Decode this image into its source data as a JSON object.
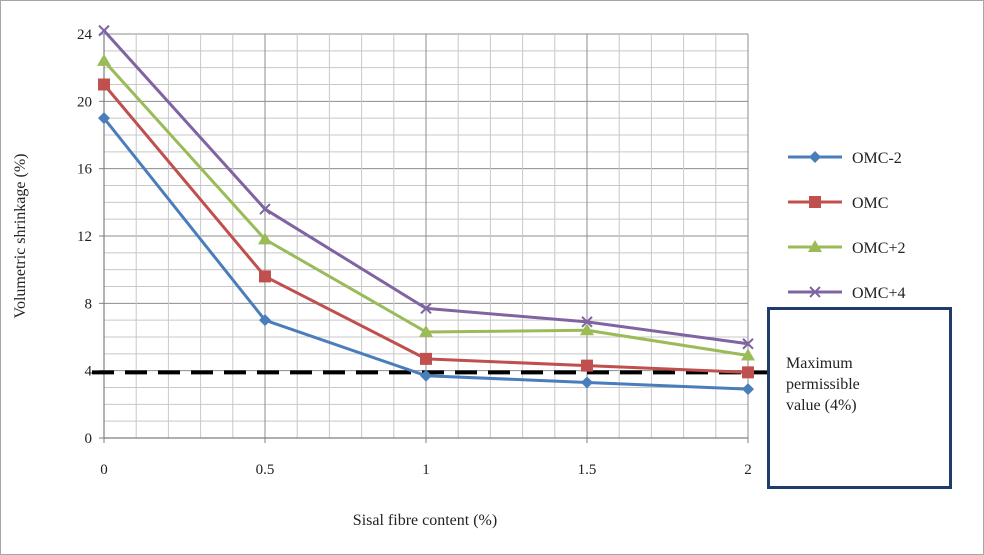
{
  "chart_data": {
    "type": "line",
    "xlabel": "Sisal fibre content (%)",
    "ylabel": "Volumetric shrinkage (%)",
    "x": [
      0,
      0.5,
      1,
      1.5,
      2
    ],
    "x_tick_labels": [
      "0",
      "0.5",
      "1",
      "1.5",
      "2"
    ],
    "y_tick_labels": [
      "0",
      "4",
      "8",
      "12",
      "16",
      "20",
      "24"
    ],
    "xlim": [
      0,
      2
    ],
    "ylim": [
      0,
      24
    ],
    "grid": true,
    "legend_position": "right",
    "series": [
      {
        "name": "OMC-2",
        "values": [
          19.0,
          7.0,
          3.7,
          3.3,
          2.9
        ],
        "color": "#4a7ebb",
        "marker": "diamond"
      },
      {
        "name": "OMC",
        "values": [
          21.0,
          9.6,
          4.7,
          4.3,
          3.9
        ],
        "color": "#c0504d",
        "marker": "square"
      },
      {
        "name": "OMC+2",
        "values": [
          22.4,
          11.8,
          6.3,
          6.4,
          4.9
        ],
        "color": "#9bbb59",
        "marker": "triangle"
      },
      {
        "name": "OMC+4",
        "values": [
          24.2,
          13.6,
          7.7,
          6.9,
          5.6
        ],
        "color": "#8064a2",
        "marker": "x"
      }
    ],
    "reference_line": {
      "value": 3.9,
      "style": "dashed",
      "color": "#000000"
    },
    "annotation": "Maximum\npermissible\nvalue (4%)"
  }
}
